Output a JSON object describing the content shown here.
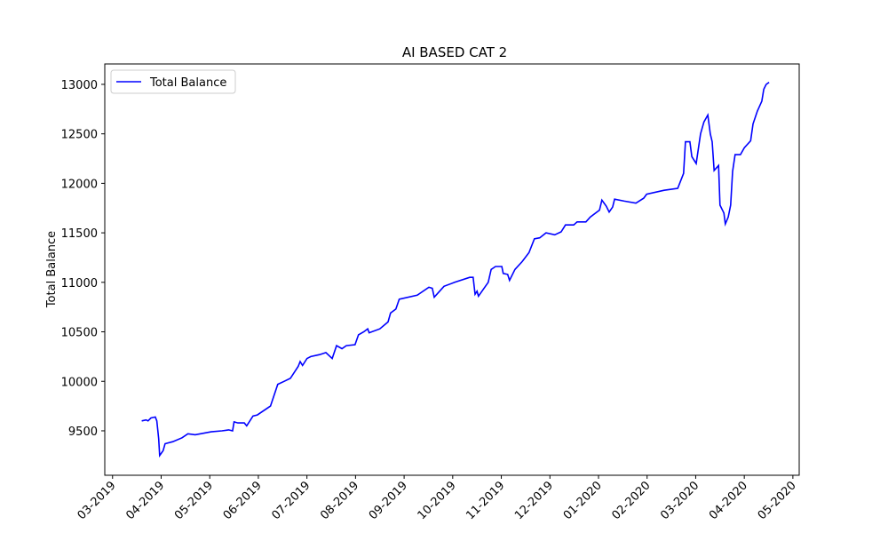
{
  "chart_data": {
    "type": "line",
    "title": "AI BASED CAT 2",
    "ylabel": "Total Balance",
    "legend": "upper left",
    "x": [
      3.6,
      3.69,
      3.73,
      3.79,
      3.88,
      3.91,
      3.95,
      3.97,
      4.04,
      4.08,
      4.24,
      4.43,
      4.55,
      4.7,
      5.03,
      5.25,
      5.39,
      5.47,
      5.5,
      5.58,
      5.71,
      5.76,
      5.89,
      5.98,
      6.25,
      6.4,
      6.53,
      6.66,
      6.82,
      6.86,
      6.91,
      7.0,
      7.08,
      7.26,
      7.39,
      7.52,
      7.61,
      7.72,
      7.81,
      7.99,
      8.06,
      8.17,
      8.25,
      8.28,
      8.5,
      8.67,
      8.72,
      8.83,
      8.9,
      9.27,
      9.51,
      9.58,
      9.62,
      9.82,
      10.04,
      10.35,
      10.42,
      10.46,
      10.5,
      10.53,
      10.73,
      10.79,
      10.88,
      11.01,
      11.04,
      11.13,
      11.17,
      11.28,
      11.43,
      11.57,
      11.68,
      11.79,
      11.92,
      12.1,
      12.23,
      12.32,
      12.49,
      12.56,
      12.74,
      12.83,
      13.02,
      13.07,
      13.16,
      13.22,
      13.29,
      13.33,
      13.53,
      13.77,
      13.93,
      13.99,
      14.35,
      14.63,
      14.75,
      14.79,
      14.88,
      14.92,
      15.01,
      15.1,
      15.17,
      15.25,
      15.3,
      15.34,
      15.38,
      15.47,
      15.5,
      15.58,
      15.61,
      15.67,
      15.72,
      15.76,
      15.81,
      15.92,
      16.0,
      16.13,
      16.18,
      16.27,
      16.36,
      16.4,
      16.45,
      16.51
    ],
    "series": [
      {
        "name": "Total Balance",
        "color": "#0000ff",
        "values": [
          9600,
          9610,
          9600,
          9630,
          9640,
          9600,
          9420,
          9250,
          9300,
          9370,
          9390,
          9430,
          9470,
          9460,
          9490,
          9500,
          9510,
          9500,
          9590,
          9580,
          9580,
          9550,
          9650,
          9660,
          9750,
          9970,
          10000,
          10030,
          10150,
          10200,
          10160,
          10230,
          10250,
          10270,
          10290,
          10230,
          10360,
          10330,
          10360,
          10370,
          10470,
          10500,
          10530,
          10490,
          10530,
          10600,
          10690,
          10730,
          10830,
          10870,
          10950,
          10940,
          10850,
          10960,
          11000,
          11050,
          11050,
          10880,
          10910,
          10860,
          11000,
          11130,
          11160,
          11160,
          11090,
          11080,
          11020,
          11130,
          11210,
          11300,
          11440,
          11450,
          11500,
          11480,
          11510,
          11580,
          11580,
          11610,
          11610,
          11660,
          11730,
          11830,
          11770,
          11710,
          11760,
          11840,
          11820,
          11800,
          11850,
          11890,
          11930,
          11950,
          12100,
          12420,
          12420,
          12270,
          12200,
          12500,
          12620,
          12690,
          12500,
          12420,
          12130,
          12180,
          11780,
          11700,
          11590,
          11660,
          11780,
          12120,
          12290,
          12290,
          12360,
          12430,
          12600,
          12730,
          12830,
          12950,
          13000,
          13020
        ]
      }
    ],
    "xlim": [
      2.84,
      17.13
    ],
    "xticks": [
      {
        "value": 3,
        "label": "03-2019"
      },
      {
        "value": 4,
        "label": "04-2019"
      },
      {
        "value": 5,
        "label": "05-2019"
      },
      {
        "value": 6,
        "label": "06-2019"
      },
      {
        "value": 7,
        "label": "07-2019"
      },
      {
        "value": 8,
        "label": "08-2019"
      },
      {
        "value": 9,
        "label": "09-2019"
      },
      {
        "value": 10,
        "label": "10-2019"
      },
      {
        "value": 11,
        "label": "11-2019"
      },
      {
        "value": 12,
        "label": "12-2019"
      },
      {
        "value": 13,
        "label": "01-2020"
      },
      {
        "value": 14,
        "label": "02-2020"
      },
      {
        "value": 15,
        "label": "03-2020"
      },
      {
        "value": 16,
        "label": "04-2020"
      },
      {
        "value": 17,
        "label": "05-2020"
      }
    ],
    "ylim": [
      9051,
      13206
    ],
    "yticks": [
      9500,
      10000,
      10500,
      11000,
      11500,
      12000,
      12500,
      13000
    ]
  }
}
